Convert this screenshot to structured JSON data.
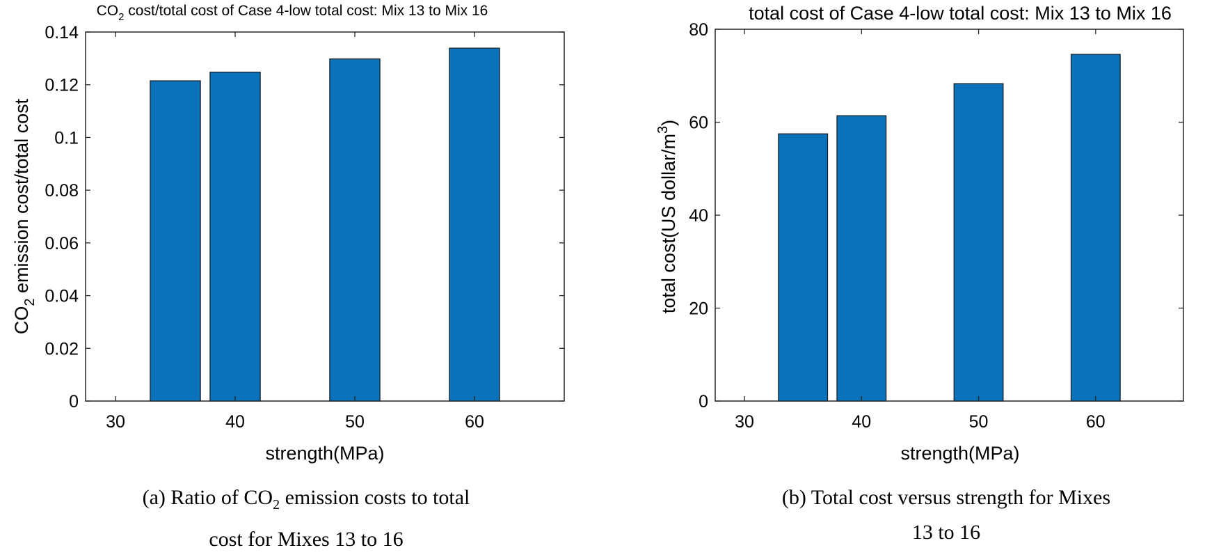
{
  "chart_data": [
    {
      "type": "bar",
      "title_prefix": "CO",
      "title_sub": "2",
      "title_rest": " cost/total cost of Case 4-low total cost: Mix 13 to Mix 16",
      "xlabel": "strength(MPa)",
      "ylabel_prefix": "CO",
      "ylabel_sub": "2",
      "ylabel_rest": " emission cost/total cost",
      "x": [
        35,
        40,
        50,
        60
      ],
      "values": [
        0.1215,
        0.1248,
        0.1298,
        0.1339
      ],
      "xlim": [
        27.5,
        67.5
      ],
      "ylim": [
        0,
        0.14
      ],
      "xticks": [
        30,
        40,
        50,
        60
      ],
      "xtick_labels": [
        "30",
        "40",
        "50",
        "60"
      ],
      "yticks": [
        0,
        0.02,
        0.04,
        0.06,
        0.08,
        0.1,
        0.12,
        0.14
      ],
      "ytick_labels": [
        "0",
        "0.02",
        "0.04",
        "0.06",
        "0.08",
        "0.1",
        "0.12",
        "0.14"
      ],
      "bar_width": 4.2,
      "bar_color": "#0a72ba",
      "grid": false
    },
    {
      "type": "bar",
      "title": "total cost of Case 4-low total cost: Mix 13 to Mix 16",
      "xlabel": "strength(MPa)",
      "ylabel": "total cost(US dollar/m",
      "ylabel_sup": "3",
      "ylabel_end": ")",
      "x": [
        35,
        40,
        50,
        60
      ],
      "values": [
        57.5,
        61.4,
        68.3,
        74.6
      ],
      "xlim": [
        27.5,
        67.5
      ],
      "ylim": [
        0,
        80
      ],
      "xticks": [
        30,
        40,
        50,
        60
      ],
      "xtick_labels": [
        "30",
        "40",
        "50",
        "60"
      ],
      "yticks": [
        0,
        20,
        40,
        60,
        80
      ],
      "ytick_labels": [
        "0",
        "20",
        "40",
        "60",
        "80"
      ],
      "bar_width": 4.2,
      "bar_color": "#0a72ba",
      "grid": false
    }
  ],
  "captions": {
    "a_part1": "(a) Ratio of CO",
    "a_sub": "2",
    "a_part2": " emission costs to total",
    "a_line2": "cost for Mixes 13 to 16",
    "b_line1": "(b) Total cost versus strength for Mixes",
    "b_line2": "13 to 16"
  }
}
